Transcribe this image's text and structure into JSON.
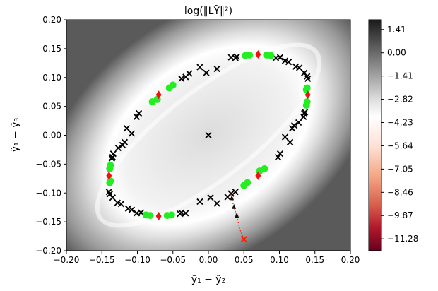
{
  "chart_data": {
    "type": "scatter",
    "title": "log(‖LỸ‖²)",
    "xlabel": "ỹ₁ − ỹ₂",
    "ylabel": "ỹ₁ − ỹ₃",
    "xlim": [
      -0.2,
      0.2
    ],
    "ylim": [
      -0.2,
      0.2
    ],
    "xticks": [
      "−0.20",
      "−0.15",
      "−0.10",
      "−0.05",
      "0.00",
      "0.05",
      "0.10",
      "0.15",
      "0.20"
    ],
    "yticks": [
      "0.20",
      "0.15",
      "0.10",
      "0.05",
      "0.00",
      "−0.05",
      "−0.10",
      "−0.15",
      "−0.20"
    ],
    "colorbar": {
      "range": [
        -12.0,
        2.0
      ],
      "ticks": [
        "1.41",
        "0.00",
        "−1.41",
        "−2.82",
        "−4.23",
        "−5.64",
        "−7.05",
        "−8.46",
        "−9.87",
        "−11.28"
      ],
      "tick_values": [
        1.41,
        0.0,
        -1.41,
        -2.82,
        -4.23,
        -5.64,
        -7.05,
        -8.46,
        -9.87,
        -11.28
      ],
      "colormap": "RdGy"
    },
    "ellipse": {
      "center": [
        0.0,
        0.0
      ],
      "reference_point": [
        0.07,
        0.14
      ],
      "opposite_point": [
        0.14,
        0.07
      ]
    },
    "center_marker": {
      "x": 0.0,
      "y": 0.0,
      "marker": "x",
      "color": "#000000"
    },
    "series": [
      {
        "marker": "x",
        "color": "#000000",
        "points": [
          [
            -0.012,
            -0.115
          ],
          [
            0.003,
            -0.108
          ],
          [
            0.012,
            -0.118
          ],
          [
            0.027,
            -0.107
          ],
          [
            0.032,
            -0.101
          ],
          [
            0.038,
            -0.098
          ],
          [
            -0.032,
            -0.135
          ],
          [
            -0.038,
            -0.134
          ],
          [
            -0.04,
            -0.136
          ],
          [
            -0.095,
            -0.134
          ],
          [
            -0.101,
            -0.135
          ],
          [
            -0.108,
            -0.129
          ],
          [
            -0.113,
            -0.127
          ],
          [
            -0.123,
            -0.119
          ],
          [
            -0.128,
            -0.117
          ],
          [
            -0.135,
            -0.108
          ],
          [
            -0.139,
            -0.102
          ],
          [
            -0.14,
            -0.098
          ],
          [
            0.012,
            0.115
          ],
          [
            -0.003,
            0.108
          ],
          [
            -0.012,
            0.118
          ],
          [
            -0.027,
            0.107
          ],
          [
            -0.032,
            0.101
          ],
          [
            -0.038,
            0.098
          ],
          [
            0.032,
            0.135
          ],
          [
            0.038,
            0.134
          ],
          [
            0.04,
            0.136
          ],
          [
            0.095,
            0.134
          ],
          [
            0.101,
            0.135
          ],
          [
            0.108,
            0.129
          ],
          [
            0.113,
            0.127
          ],
          [
            0.123,
            0.119
          ],
          [
            0.128,
            0.117
          ],
          [
            0.135,
            0.108
          ],
          [
            0.139,
            0.102
          ],
          [
            0.14,
            0.098
          ],
          [
            0.118,
            0.012
          ],
          [
            0.108,
            -0.003
          ],
          [
            0.115,
            -0.012
          ],
          [
            0.101,
            -0.032
          ],
          [
            0.098,
            -0.038
          ],
          [
            0.134,
            0.032
          ],
          [
            0.135,
            0.038
          ],
          [
            0.136,
            0.04
          ],
          [
            0.127,
            0.022
          ],
          [
            0.121,
            0.017
          ],
          [
            -0.118,
            -0.012
          ],
          [
            -0.108,
            0.003
          ],
          [
            -0.115,
            0.012
          ],
          [
            -0.101,
            0.032
          ],
          [
            -0.098,
            0.038
          ],
          [
            -0.134,
            -0.032
          ],
          [
            -0.135,
            -0.038
          ],
          [
            -0.136,
            -0.04
          ],
          [
            -0.127,
            -0.022
          ],
          [
            -0.121,
            -0.017
          ]
        ]
      },
      {
        "marker": "circle",
        "color": "#22ee22",
        "points": [
          [
            0.052,
            0.138
          ],
          [
            0.058,
            0.139
          ],
          [
            0.082,
            0.139
          ],
          [
            0.088,
            0.138
          ],
          [
            0.138,
            0.079
          ],
          [
            0.139,
            0.082
          ],
          [
            0.079,
            -0.058
          ],
          [
            0.072,
            -0.062
          ],
          [
            0.055,
            -0.082
          ],
          [
            0.05,
            -0.087
          ],
          [
            -0.052,
            -0.138
          ],
          [
            -0.058,
            -0.139
          ],
          [
            -0.082,
            -0.139
          ],
          [
            -0.088,
            -0.138
          ],
          [
            -0.138,
            -0.079
          ],
          [
            -0.139,
            -0.082
          ],
          [
            -0.079,
            0.058
          ],
          [
            -0.072,
            0.062
          ],
          [
            -0.055,
            0.082
          ],
          [
            -0.05,
            0.087
          ],
          [
            -0.139,
            -0.058
          ],
          [
            -0.138,
            -0.052
          ],
          [
            0.139,
            0.058
          ],
          [
            0.138,
            0.052
          ]
        ]
      },
      {
        "marker": "diamond",
        "color": "#ee1111",
        "points": [
          [
            0.07,
            0.14
          ],
          [
            0.14,
            0.07
          ],
          [
            0.07,
            -0.07
          ],
          [
            -0.07,
            -0.14
          ],
          [
            -0.14,
            -0.07
          ],
          [
            -0.07,
            0.07
          ]
        ]
      }
    ],
    "trajectory": {
      "color": "#ff2200",
      "start": {
        "x": 0.05,
        "y": -0.18,
        "marker": "x"
      },
      "path": [
        [
          0.05,
          -0.18
        ],
        [
          0.044,
          -0.162
        ],
        [
          0.04,
          -0.14
        ],
        [
          0.036,
          -0.125
        ],
        [
          0.033,
          -0.11
        ],
        [
          0.031,
          -0.1
        ]
      ],
      "arrowheads": [
        [
          0.04,
          -0.14
        ],
        [
          0.036,
          -0.125
        ],
        [
          0.033,
          -0.11
        ]
      ]
    }
  }
}
